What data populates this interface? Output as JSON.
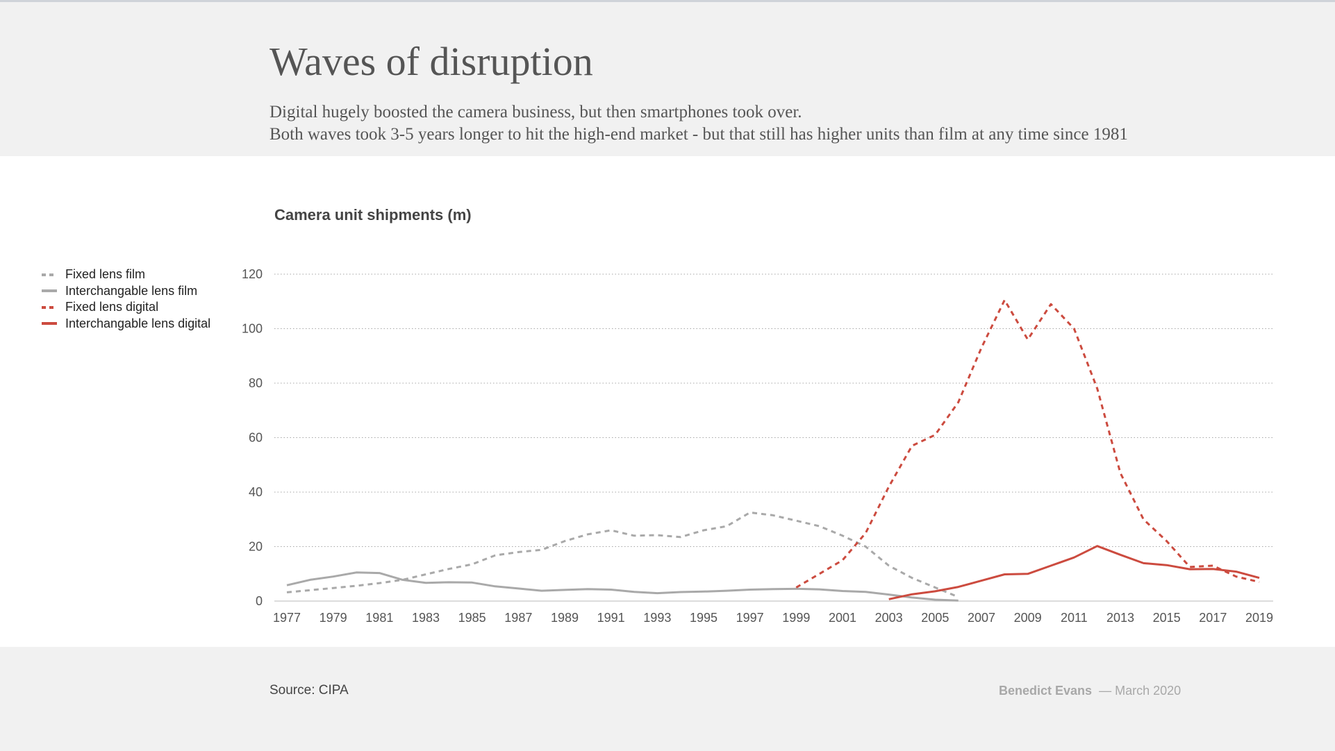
{
  "header": {
    "title": "Waves of disruption",
    "subtitle_line1": "Digital hugely boosted the camera business, but then smartphones took over.",
    "subtitle_line2": "Both waves took 3-5 years longer to hit the high-end market - but that still has higher units than film at any time since 1981"
  },
  "footer": {
    "source": "Source: CIPA",
    "author": "Benedict Evans",
    "date": "— March 2020"
  },
  "chart_data": {
    "type": "line",
    "title": "Camera unit shipments (m)",
    "xlabel": "",
    "ylabel": "",
    "xlim": [
      1977,
      2019
    ],
    "ylim": [
      0,
      120
    ],
    "y_ticks": [
      0,
      20,
      40,
      60,
      80,
      100,
      120
    ],
    "x_ticks": [
      1977,
      1979,
      1981,
      1983,
      1985,
      1987,
      1989,
      1991,
      1993,
      1995,
      1997,
      1999,
      2001,
      2003,
      2005,
      2007,
      2009,
      2011,
      2013,
      2015,
      2017,
      2019
    ],
    "grid": "horizontal-dotted",
    "legend_position": "left",
    "series": [
      {
        "name": "Fixed lens film",
        "color": "#a9a9a9",
        "style": "dashed",
        "points": [
          [
            1977,
            3.2
          ],
          [
            1978,
            4.0
          ],
          [
            1979,
            4.8
          ],
          [
            1980,
            5.6
          ],
          [
            1981,
            6.6
          ],
          [
            1982,
            7.8
          ],
          [
            1983,
            9.8
          ],
          [
            1984,
            11.8
          ],
          [
            1985,
            13.5
          ],
          [
            1986,
            16.8
          ],
          [
            1987,
            18.0
          ],
          [
            1988,
            18.8
          ],
          [
            1989,
            22.0
          ],
          [
            1990,
            24.5
          ],
          [
            1991,
            26.0
          ],
          [
            1992,
            24.0
          ],
          [
            1993,
            24.2
          ],
          [
            1994,
            23.5
          ],
          [
            1995,
            26.0
          ],
          [
            1996,
            27.5
          ],
          [
            1997,
            32.5
          ],
          [
            1998,
            31.5
          ],
          [
            1999,
            29.5
          ],
          [
            2000,
            27.5
          ],
          [
            2001,
            24.0
          ],
          [
            2002,
            20.0
          ],
          [
            2003,
            13.0
          ],
          [
            2004,
            8.5
          ],
          [
            2005,
            5.0
          ],
          [
            2006,
            1.5
          ]
        ]
      },
      {
        "name": "Interchangable lens film",
        "color": "#a9a9a9",
        "style": "solid",
        "points": [
          [
            1977,
            5.8
          ],
          [
            1978,
            7.8
          ],
          [
            1979,
            9.0
          ],
          [
            1980,
            10.5
          ],
          [
            1981,
            10.3
          ],
          [
            1982,
            7.8
          ],
          [
            1983,
            6.7
          ],
          [
            1984,
            6.9
          ],
          [
            1985,
            6.8
          ],
          [
            1986,
            5.4
          ],
          [
            1987,
            4.6
          ],
          [
            1988,
            3.8
          ],
          [
            1989,
            4.1
          ],
          [
            1990,
            4.4
          ],
          [
            1991,
            4.2
          ],
          [
            1992,
            3.4
          ],
          [
            1993,
            2.9
          ],
          [
            1994,
            3.3
          ],
          [
            1995,
            3.5
          ],
          [
            1996,
            3.8
          ],
          [
            1997,
            4.2
          ],
          [
            1998,
            4.4
          ],
          [
            1999,
            4.5
          ],
          [
            2000,
            4.3
          ],
          [
            2001,
            3.7
          ],
          [
            2002,
            3.4
          ],
          [
            2003,
            2.4
          ],
          [
            2004,
            1.3
          ],
          [
            2005,
            0.5
          ],
          [
            2006,
            0.2
          ]
        ]
      },
      {
        "name": "Fixed lens digital",
        "color": "#cc4b3f",
        "style": "dashed",
        "points": [
          [
            1999,
            5.0
          ],
          [
            2000,
            10.0
          ],
          [
            2001,
            15.0
          ],
          [
            2002,
            25.0
          ],
          [
            2003,
            42.0
          ],
          [
            2004,
            57.0
          ],
          [
            2005,
            61.0
          ],
          [
            2006,
            73.0
          ],
          [
            2007,
            93.0
          ],
          [
            2008,
            110.5
          ],
          [
            2009,
            96.0
          ],
          [
            2010,
            109.0
          ],
          [
            2011,
            100.0
          ],
          [
            2012,
            78.0
          ],
          [
            2013,
            47.0
          ],
          [
            2014,
            30.0
          ],
          [
            2015,
            22.0
          ],
          [
            2016,
            12.5
          ],
          [
            2017,
            13.0
          ],
          [
            2018,
            9.0
          ],
          [
            2019,
            7.0
          ]
        ]
      },
      {
        "name": "Interchangable lens digital",
        "color": "#cc4b3f",
        "style": "solid",
        "points": [
          [
            2003,
            0.7
          ],
          [
            2004,
            2.5
          ],
          [
            2005,
            3.6
          ],
          [
            2006,
            5.2
          ],
          [
            2007,
            7.5
          ],
          [
            2008,
            9.8
          ],
          [
            2009,
            10.0
          ],
          [
            2010,
            13.0
          ],
          [
            2011,
            16.0
          ],
          [
            2012,
            20.2
          ],
          [
            2013,
            17.0
          ],
          [
            2014,
            13.9
          ],
          [
            2015,
            13.2
          ],
          [
            2016,
            11.7
          ],
          [
            2017,
            11.8
          ],
          [
            2018,
            10.8
          ],
          [
            2019,
            8.5
          ]
        ]
      }
    ]
  }
}
